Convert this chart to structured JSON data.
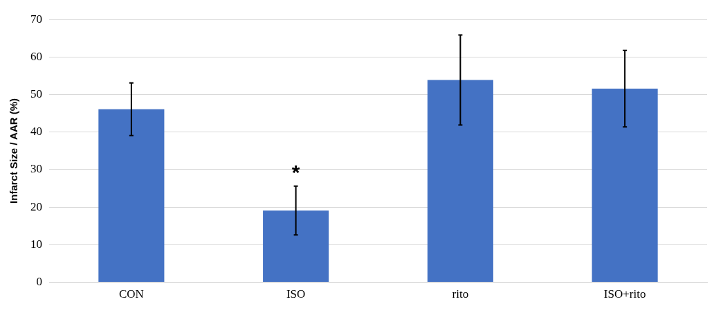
{
  "chart_data": {
    "type": "bar",
    "ylabel": "Infarct Size / AAR (%)",
    "categories": [
      "CON",
      "ISO",
      "rito",
      "ISO+rito"
    ],
    "series": [
      {
        "color": "#4472c4",
        "values": [
          46.1,
          19.1,
          53.9,
          51.6
        ],
        "errors": [
          7,
          6.5,
          12,
          10.2
        ]
      }
    ],
    "ylim": [
      0,
      70
    ],
    "yticks": [
      0,
      10,
      20,
      30,
      40,
      50,
      60,
      70
    ],
    "grid": "y",
    "legend": false,
    "annotations": [
      {
        "text": "*",
        "x": "ISO",
        "y": 25.6
      }
    ]
  }
}
